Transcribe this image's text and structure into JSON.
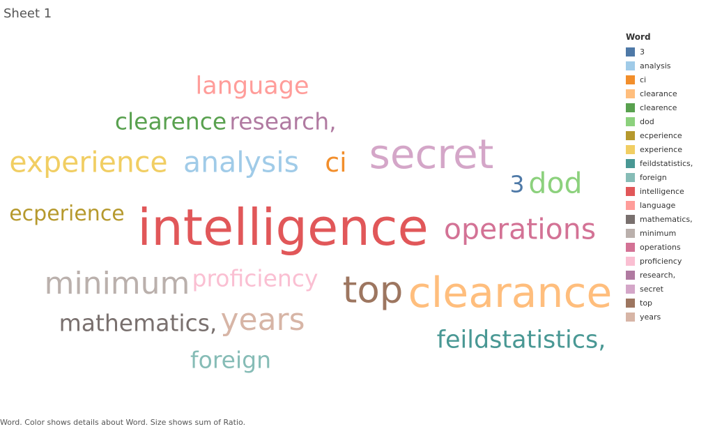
{
  "sheet": {
    "title": "Sheet 1",
    "caption": "Word.  Color shows details about Word.  Size shows sum of Ratio."
  },
  "chart_data": {
    "type": "word_cloud",
    "title": "",
    "size_measure": "sum of Ratio",
    "color_dimension": "Word",
    "legend": {
      "title": "Word",
      "placement": "right"
    },
    "words": [
      {
        "word": "3",
        "color": "#4e79a7",
        "ratio": 3
      },
      {
        "word": "analysis",
        "color": "#a0cbe8",
        "ratio": 4
      },
      {
        "word": "ci",
        "color": "#f28e2b",
        "ratio": 3
      },
      {
        "word": "clearance",
        "color": "#ffbe7d",
        "ratio": 7
      },
      {
        "word": "clearence",
        "color": "#59a14f",
        "ratio": 3
      },
      {
        "word": "dod",
        "color": "#8cd17d",
        "ratio": 4
      },
      {
        "word": "ecperience",
        "color": "#b6992d",
        "ratio": 3
      },
      {
        "word": "experience",
        "color": "#f1ce63",
        "ratio": 4
      },
      {
        "word": "feildstatistics,",
        "color": "#499894",
        "ratio": 3
      },
      {
        "word": "foreign",
        "color": "#86bcb6",
        "ratio": 3
      },
      {
        "word": "intelligence",
        "color": "#e15759",
        "ratio": 10
      },
      {
        "word": "language",
        "color": "#ff9d9a",
        "ratio": 3
      },
      {
        "word": "mathematics,",
        "color": "#79706e",
        "ratio": 3
      },
      {
        "word": "minimum",
        "color": "#bab0ac",
        "ratio": 4
      },
      {
        "word": "operations",
        "color": "#d37295",
        "ratio": 4
      },
      {
        "word": "proficiency",
        "color": "#fabfd2",
        "ratio": 3
      },
      {
        "word": "research,",
        "color": "#b07aa1",
        "ratio": 3
      },
      {
        "word": "secret",
        "color": "#d4a6c8",
        "ratio": 6
      },
      {
        "word": "top",
        "color": "#9d7660",
        "ratio": 5
      },
      {
        "word": "years",
        "color": "#d7b5a6",
        "ratio": 4
      }
    ]
  }
}
